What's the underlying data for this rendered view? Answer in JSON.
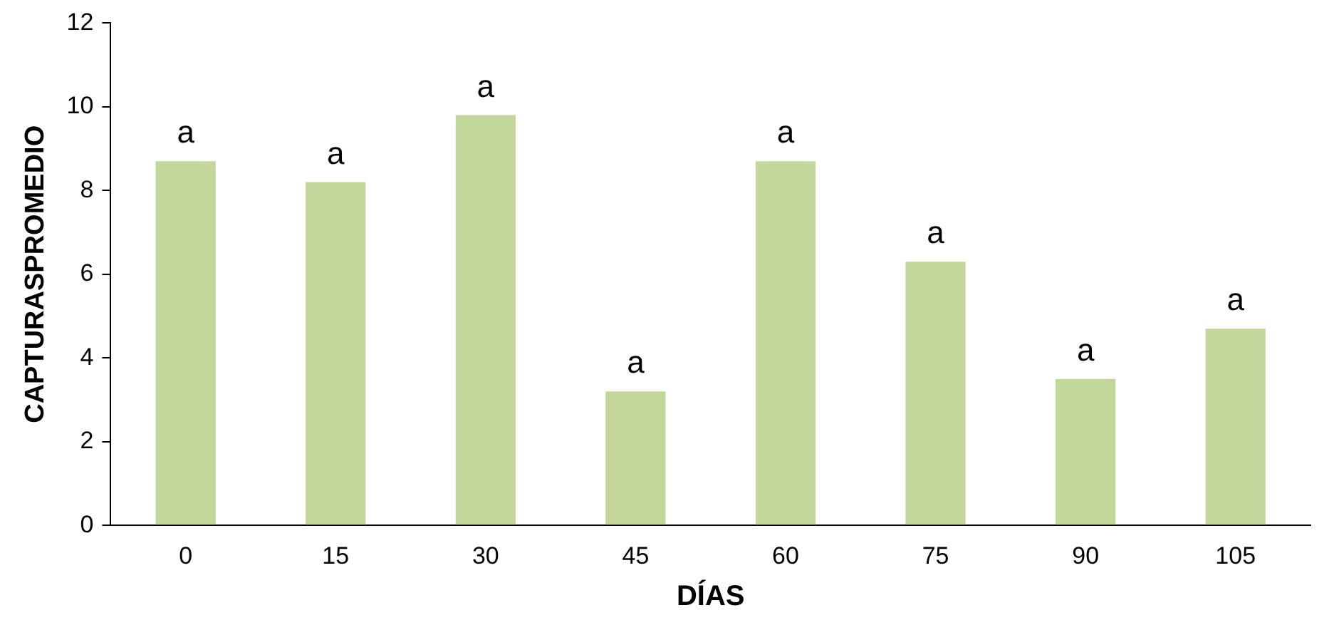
{
  "chart_data": {
    "type": "bar",
    "xlabel": "DÍAS",
    "ylabel": "CAPTURASPROMEDIO",
    "categories": [
      "0",
      "15",
      "30",
      "45",
      "60",
      "75",
      "90",
      "105"
    ],
    "values": [
      8.7,
      8.2,
      9.8,
      3.2,
      8.7,
      6.3,
      3.5,
      4.7
    ],
    "color": "#c4d79b",
    "ylim": [
      0,
      12
    ],
    "yticks": [
      0,
      2,
      4,
      6,
      8,
      10,
      12
    ],
    "grid": false,
    "legend": false,
    "annotations": [
      {
        "text": "a",
        "x": "0",
        "y": 8.7
      },
      {
        "text": "a",
        "x": "15",
        "y": 8.2
      },
      {
        "text": "a",
        "x": "30",
        "y": 9.8
      },
      {
        "text": "a",
        "x": "45",
        "y": 3.2
      },
      {
        "text": "a",
        "x": "60",
        "y": 8.7
      },
      {
        "text": "a",
        "x": "75",
        "y": 6.3
      },
      {
        "text": "a",
        "x": "90",
        "y": 3.5
      },
      {
        "text": "a",
        "x": "105",
        "y": 4.7
      }
    ]
  }
}
